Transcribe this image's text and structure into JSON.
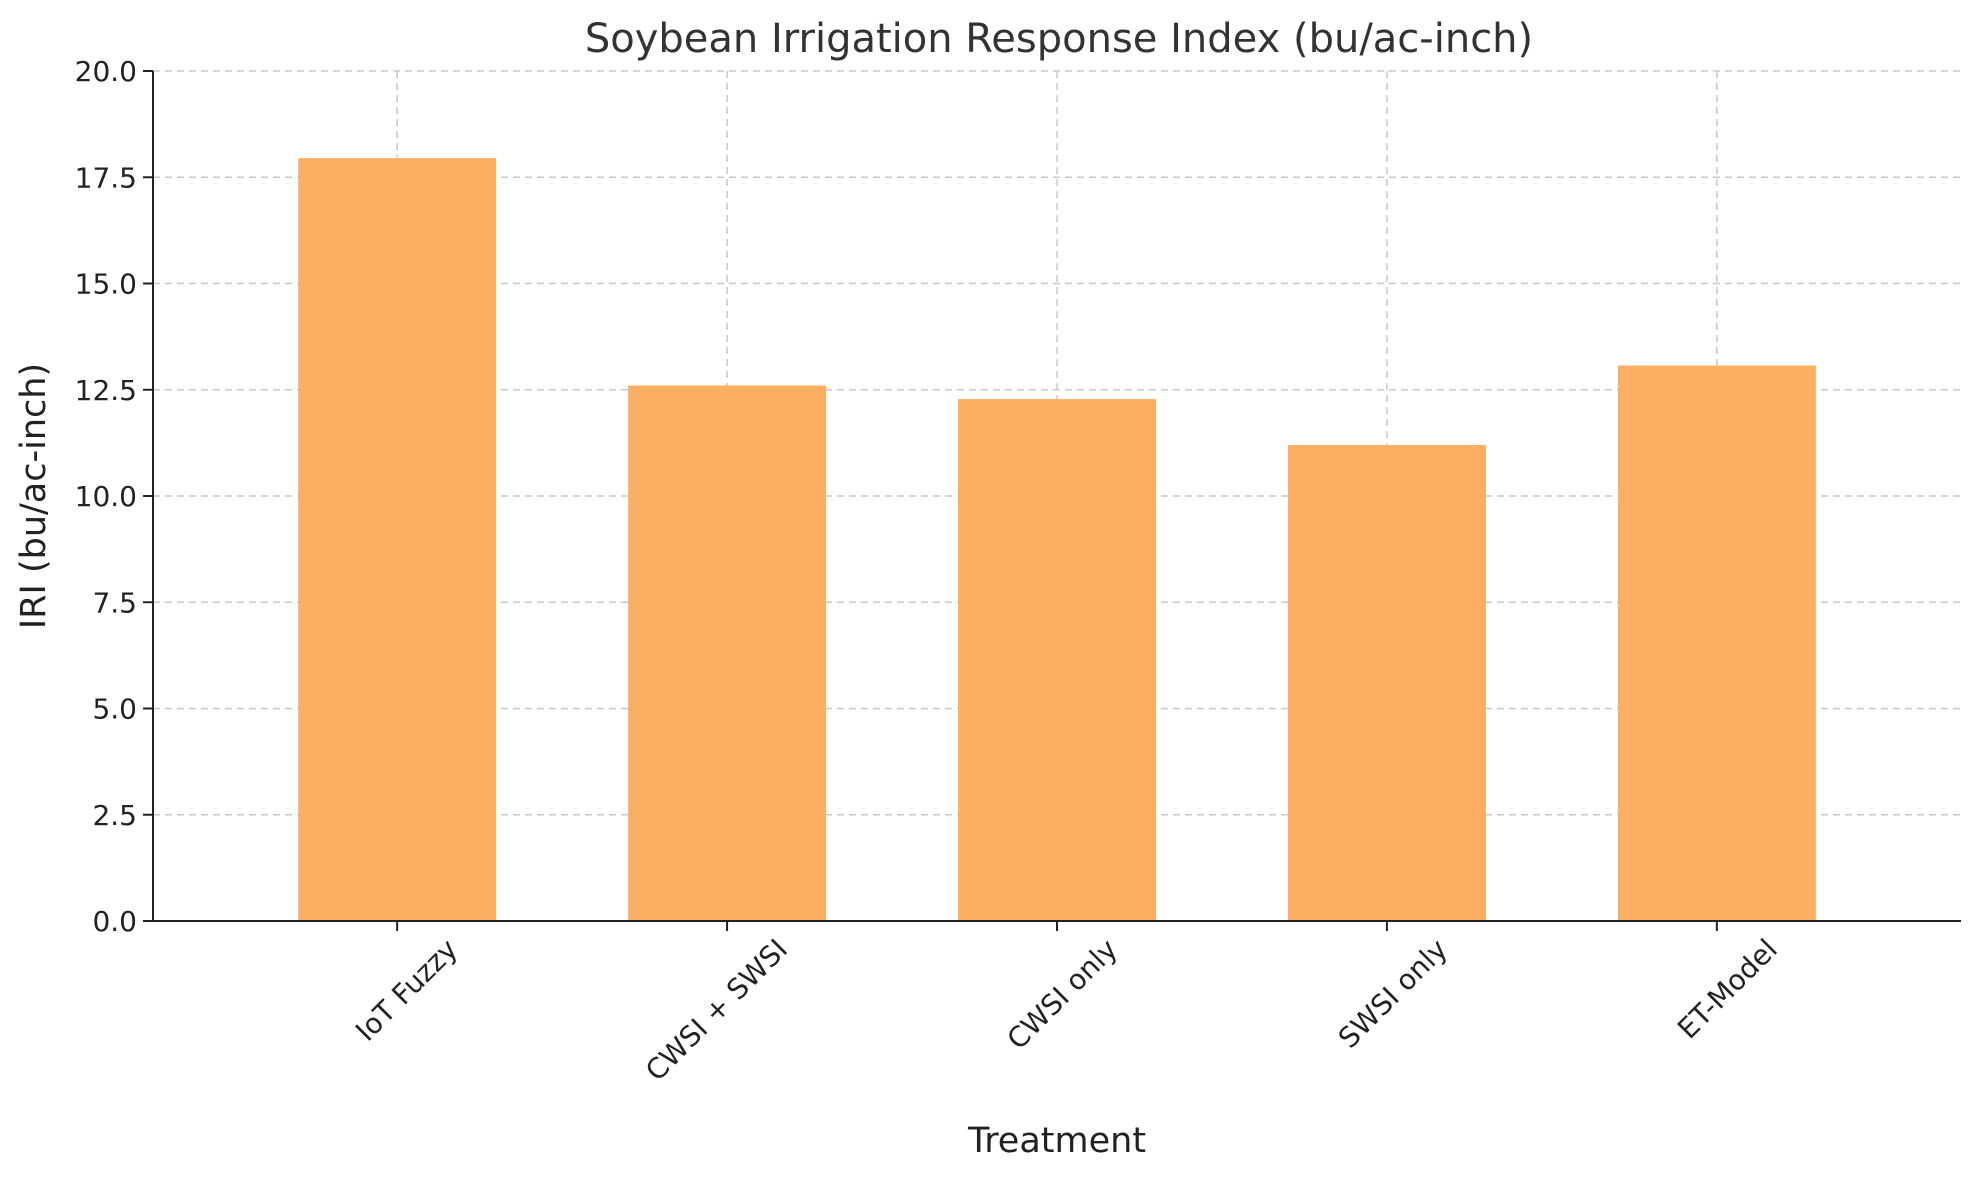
{
  "chart_data": {
    "type": "bar",
    "title": "Soybean Irrigation Response Index (bu/ac-inch)",
    "xlabel": "Treatment",
    "ylabel": "IRI (bu/ac-inch)",
    "categories": [
      "IoT Fuzzy",
      "CWSI + SWSI",
      "CWSI only",
      "SWSI only",
      "ET-Model"
    ],
    "values": [
      17.95,
      12.6,
      12.28,
      11.2,
      13.07
    ],
    "ylim": [
      0,
      20
    ],
    "yticks": [
      "0.0",
      "2.5",
      "5.0",
      "7.5",
      "10.0",
      "12.5",
      "15.0",
      "17.5",
      "20.0"
    ],
    "grid": true,
    "bar_color": "#FCAE63"
  }
}
